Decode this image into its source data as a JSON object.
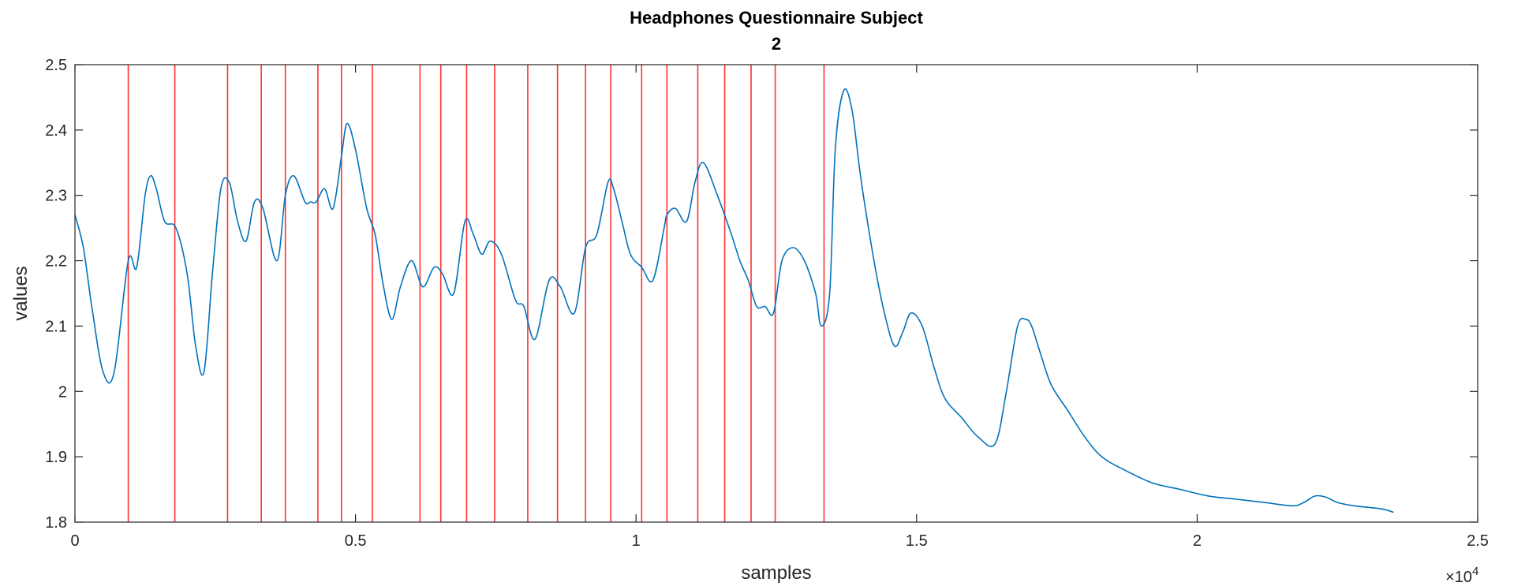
{
  "chart_data": {
    "type": "line",
    "title": "Headphones Questionnaire Subject",
    "subtitle": "2",
    "xlabel": "samples",
    "ylabel": "values",
    "x_exponent_label": "×10",
    "x_exponent_power": "4",
    "xlim": [
      0,
      25000
    ],
    "ylim": [
      1.8,
      2.5
    ],
    "grid": false,
    "x_ticks": [
      0,
      5000,
      10000,
      15000,
      20000,
      25000
    ],
    "x_tick_labels": [
      "0",
      "0.5",
      "1",
      "1.5",
      "2",
      "2.5"
    ],
    "y_ticks": [
      1.8,
      1.9,
      2.0,
      2.1,
      2.2,
      2.3,
      2.4,
      2.5
    ],
    "y_tick_labels": [
      "1.8",
      "1.9",
      "2",
      "2.1",
      "2.2",
      "2.3",
      "2.4",
      "2.5"
    ],
    "series": [
      {
        "color": "#0072BD",
        "x": [
          0,
          150,
          300,
          500,
          700,
          950,
          1100,
          1250,
          1350,
          1450,
          1600,
          1800,
          2000,
          2150,
          2300,
          2450,
          2600,
          2750,
          2900,
          3050,
          3200,
          3350,
          3600,
          3750,
          3900,
          4100,
          4200,
          4300,
          4450,
          4600,
          4750,
          4850,
          5000,
          5200,
          5350,
          5500,
          5650,
          5800,
          6000,
          6200,
          6400,
          6550,
          6750,
          6950,
          7100,
          7250,
          7400,
          7600,
          7850,
          8000,
          8200,
          8450,
          8650,
          8900,
          9100,
          9300,
          9500,
          9600,
          9750,
          9900,
          10100,
          10300,
          10500,
          10550,
          10700,
          10900,
          11050,
          11200,
          11450,
          11700,
          11850,
          12000,
          12150,
          12300,
          12450,
          12600,
          12800,
          13000,
          13200,
          13300,
          13450,
          13550,
          13700,
          13850,
          14000,
          14200,
          14400,
          14600,
          14750,
          14900,
          15100,
          15300,
          15500,
          15800,
          16100,
          16400,
          16600,
          16800,
          16950,
          17050,
          17200,
          17400,
          17700,
          18000,
          18300,
          18700,
          19200,
          19700,
          20200,
          20700,
          21200,
          21700,
          21900,
          22100,
          22300,
          22500,
          22800,
          23300,
          23500
        ],
        "y": [
          2.27,
          2.22,
          2.13,
          2.03,
          2.03,
          2.2,
          2.19,
          2.3,
          2.33,
          2.31,
          2.26,
          2.25,
          2.18,
          2.07,
          2.03,
          2.18,
          2.31,
          2.32,
          2.26,
          2.23,
          2.29,
          2.28,
          2.2,
          2.3,
          2.33,
          2.29,
          2.29,
          2.29,
          2.31,
          2.28,
          2.36,
          2.41,
          2.37,
          2.28,
          2.24,
          2.16,
          2.11,
          2.16,
          2.2,
          2.16,
          2.19,
          2.18,
          2.15,
          2.26,
          2.24,
          2.21,
          2.23,
          2.21,
          2.14,
          2.13,
          2.08,
          2.17,
          2.16,
          2.12,
          2.22,
          2.24,
          2.32,
          2.31,
          2.26,
          2.21,
          2.19,
          2.17,
          2.25,
          2.27,
          2.28,
          2.26,
          2.32,
          2.35,
          2.3,
          2.24,
          2.2,
          2.17,
          2.13,
          2.13,
          2.12,
          2.2,
          2.22,
          2.2,
          2.15,
          2.1,
          2.15,
          2.37,
          2.46,
          2.43,
          2.33,
          2.22,
          2.13,
          2.07,
          2.09,
          2.12,
          2.1,
          2.04,
          1.99,
          1.96,
          1.93,
          1.92,
          2.0,
          2.1,
          2.11,
          2.1,
          2.06,
          2.01,
          1.97,
          1.93,
          1.9,
          1.88,
          1.86,
          1.85,
          1.84,
          1.835,
          1.83,
          1.825,
          1.83,
          1.84,
          1.838,
          1.83,
          1.825,
          1.82,
          1.815
        ]
      }
    ],
    "vertical_lines": {
      "color": "#FF3030",
      "x": [
        950,
        1780,
        2720,
        3320,
        3750,
        4330,
        4750,
        5300,
        6150,
        6520,
        6980,
        7480,
        8070,
        8600,
        9100,
        9550,
        10100,
        10550,
        11100,
        11580,
        12050,
        12480,
        13350
      ]
    }
  }
}
